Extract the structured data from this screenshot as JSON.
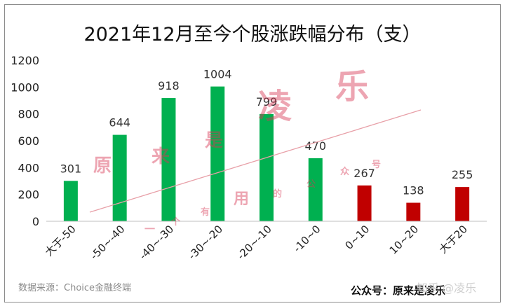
{
  "chart_data": {
    "type": "bar",
    "title": "2021年12月至今个股涨跌幅分布（支）",
    "categories": [
      "大于-50",
      "-50~-40",
      "-40~-30",
      "-30~-20",
      "-20~-10",
      "-10~0",
      "0~10",
      "10~20",
      "大于20"
    ],
    "values": [
      301,
      644,
      918,
      1004,
      799,
      470,
      267,
      138,
      255
    ],
    "colors": [
      "#00b050",
      "#00b050",
      "#00b050",
      "#00b050",
      "#00b050",
      "#00b050",
      "#c00000",
      "#c00000",
      "#c00000"
    ],
    "ylim": [
      0,
      1200
    ],
    "yticks": [
      0,
      200,
      400,
      600,
      800,
      1000,
      1200
    ],
    "xlabel": "",
    "ylabel": "",
    "grid": false,
    "legend": "none",
    "trendline_color": "#e8a0a8"
  },
  "footer": {
    "source": "数据来源：Choice金融终端",
    "wechat": "公众号：原来是凌乐",
    "zhihu": "知乎 @凌乐"
  },
  "watermark": {
    "chars": [
      "原",
      "来",
      "是",
      "凌",
      "乐",
      "一",
      "个",
      "有",
      "用",
      "的",
      "公",
      "众",
      "号"
    ]
  }
}
